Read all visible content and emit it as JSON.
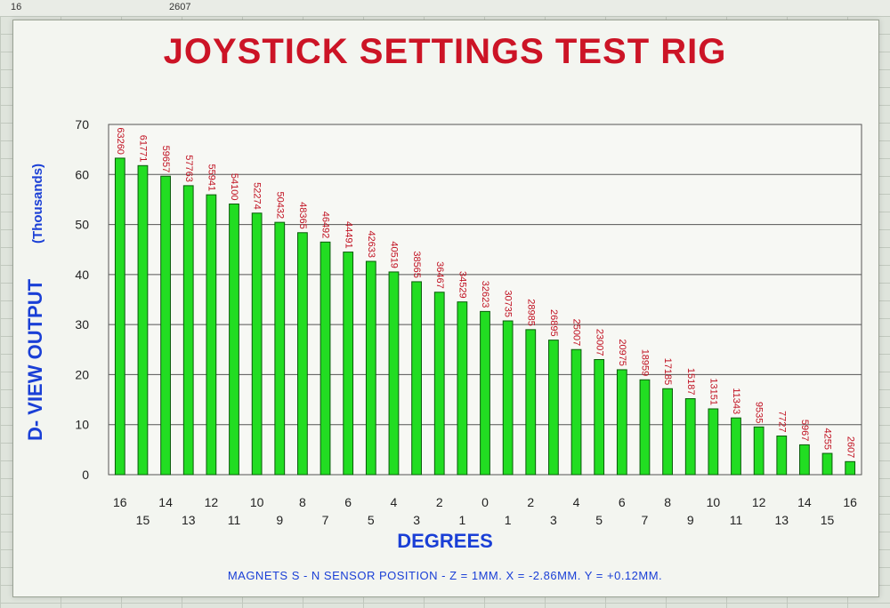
{
  "sheet": {
    "cell_a": "16",
    "cell_b": "2607"
  },
  "chart_data": {
    "type": "bar",
    "title": "JOYSTICK SETTINGS TEST RIG",
    "ylabel": "D- VIEW OUTPUT",
    "ylabel_unit": "(Thousands)",
    "xlabel": "DEGREES",
    "footnote": "MAGNETS S - N  SENSOR POSITION - Z = 1MM. X = -2.86MM. Y = +0.12MM.",
    "ylim": [
      0,
      70
    ],
    "yticks": [
      0,
      10,
      20,
      30,
      40,
      50,
      60,
      70
    ],
    "grid": true,
    "bar_color": "#22dd22",
    "categories": [
      "16",
      "15",
      "14",
      "13",
      "12",
      "11",
      "10",
      "9",
      "8",
      "7",
      "6",
      "5",
      "4",
      "3",
      "2",
      "1",
      "0",
      "1",
      "2",
      "3",
      "4",
      "5",
      "6",
      "7",
      "8",
      "9",
      "10",
      "11",
      "12",
      "13",
      "14",
      "15",
      "16"
    ],
    "values": [
      63260,
      61771,
      59657,
      57763,
      55941,
      54100,
      52274,
      50432,
      48365,
      46492,
      44491,
      42633,
      40519,
      38565,
      36467,
      34529,
      32623,
      30735,
      28985,
      26895,
      25007,
      23007,
      20975,
      18959,
      17185,
      15187,
      13151,
      11343,
      9535,
      7727,
      5967,
      4255,
      2607
    ]
  }
}
